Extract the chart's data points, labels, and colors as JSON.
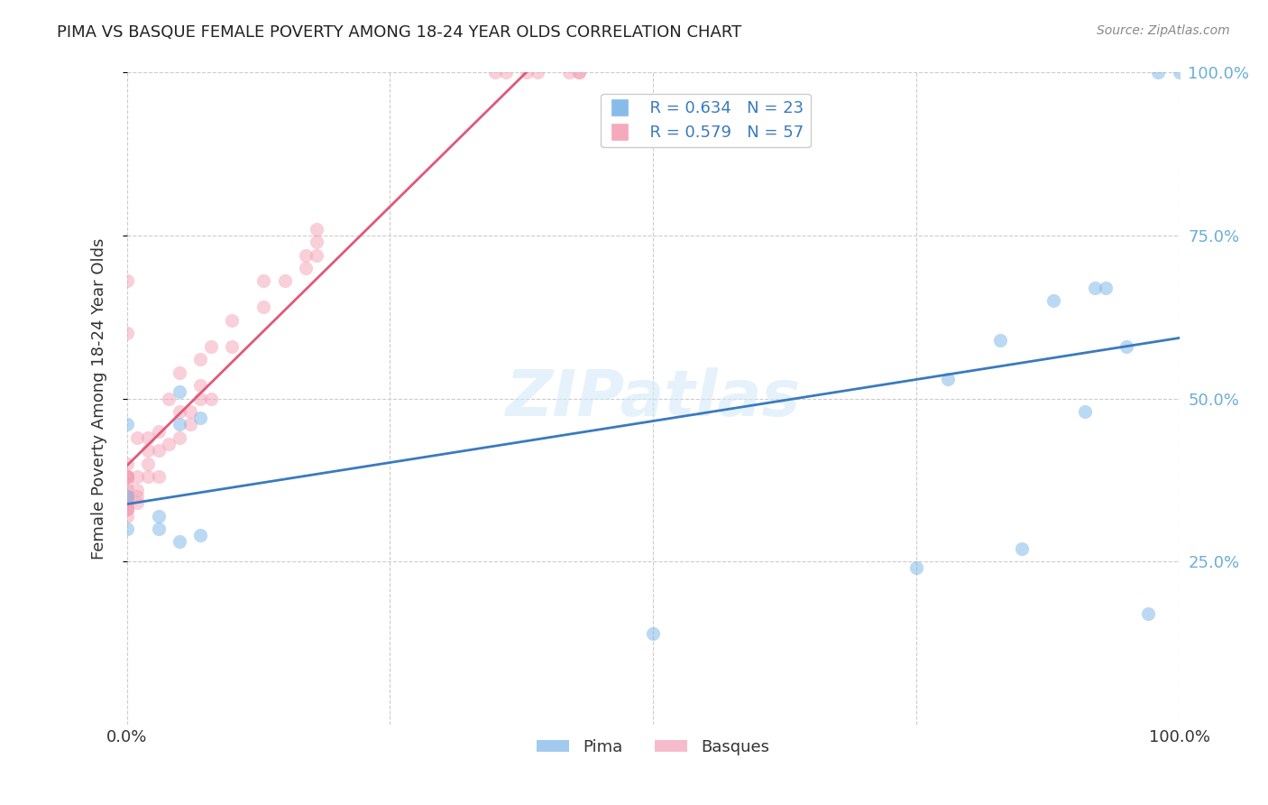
{
  "title": "PIMA VS BASQUE FEMALE POVERTY AMONG 18-24 YEAR OLDS CORRELATION CHART",
  "source": "Source: ZipAtlas.com",
  "ylabel": "Female Poverty Among 18-24 Year Olds",
  "xlim": [
    0,
    1.0
  ],
  "ylim": [
    0,
    1.0
  ],
  "pima_color": "#7ab4e8",
  "basque_color": "#f4a0b5",
  "pima_line_color": "#3a7abf",
  "basque_line_color": "#e05878",
  "watermark": "ZIPatlas",
  "legend_pima_r": "R = 0.634",
  "legend_pima_n": "N = 23",
  "legend_basque_r": "R = 0.579",
  "legend_basque_n": "N = 57",
  "pima_x": [
    0.0,
    0.0,
    0.0,
    0.03,
    0.03,
    0.05,
    0.05,
    0.05,
    0.07,
    0.07,
    0.5,
    0.75,
    0.78,
    0.83,
    0.85,
    0.88,
    0.91,
    0.92,
    0.93,
    0.95,
    0.97,
    0.98,
    1.0
  ],
  "pima_y": [
    0.3,
    0.35,
    0.46,
    0.3,
    0.32,
    0.28,
    0.46,
    0.51,
    0.47,
    0.29,
    0.14,
    0.24,
    0.53,
    0.59,
    0.27,
    0.65,
    0.48,
    0.67,
    0.67,
    0.58,
    0.17,
    1.0,
    1.0
  ],
  "basque_x": [
    0.0,
    0.0,
    0.0,
    0.0,
    0.0,
    0.0,
    0.0,
    0.0,
    0.0,
    0.0,
    0.0,
    0.0,
    0.0,
    0.0,
    0.0,
    0.0,
    0.01,
    0.01,
    0.01,
    0.01,
    0.01,
    0.02,
    0.02,
    0.02,
    0.02,
    0.03,
    0.03,
    0.03,
    0.04,
    0.04,
    0.05,
    0.05,
    0.05,
    0.06,
    0.06,
    0.07,
    0.07,
    0.07,
    0.08,
    0.08,
    0.1,
    0.1,
    0.13,
    0.13,
    0.15,
    0.17,
    0.17,
    0.18,
    0.18,
    0.18,
    0.35,
    0.36,
    0.38,
    0.39,
    0.42,
    0.43,
    0.43
  ],
  "basque_y": [
    0.32,
    0.33,
    0.33,
    0.33,
    0.34,
    0.35,
    0.35,
    0.36,
    0.37,
    0.38,
    0.38,
    0.38,
    0.38,
    0.4,
    0.6,
    0.68,
    0.34,
    0.35,
    0.36,
    0.38,
    0.44,
    0.38,
    0.4,
    0.42,
    0.44,
    0.38,
    0.42,
    0.45,
    0.43,
    0.5,
    0.44,
    0.48,
    0.54,
    0.46,
    0.48,
    0.5,
    0.52,
    0.56,
    0.5,
    0.58,
    0.58,
    0.62,
    0.64,
    0.68,
    0.68,
    0.7,
    0.72,
    0.72,
    0.74,
    0.76,
    1.0,
    1.0,
    1.0,
    1.0,
    1.0,
    1.0,
    1.0
  ],
  "background_color": "#ffffff",
  "grid_color": "#cccccc",
  "right_tick_color": "#6baed6",
  "marker_size": 120,
  "marker_alpha": 0.5
}
